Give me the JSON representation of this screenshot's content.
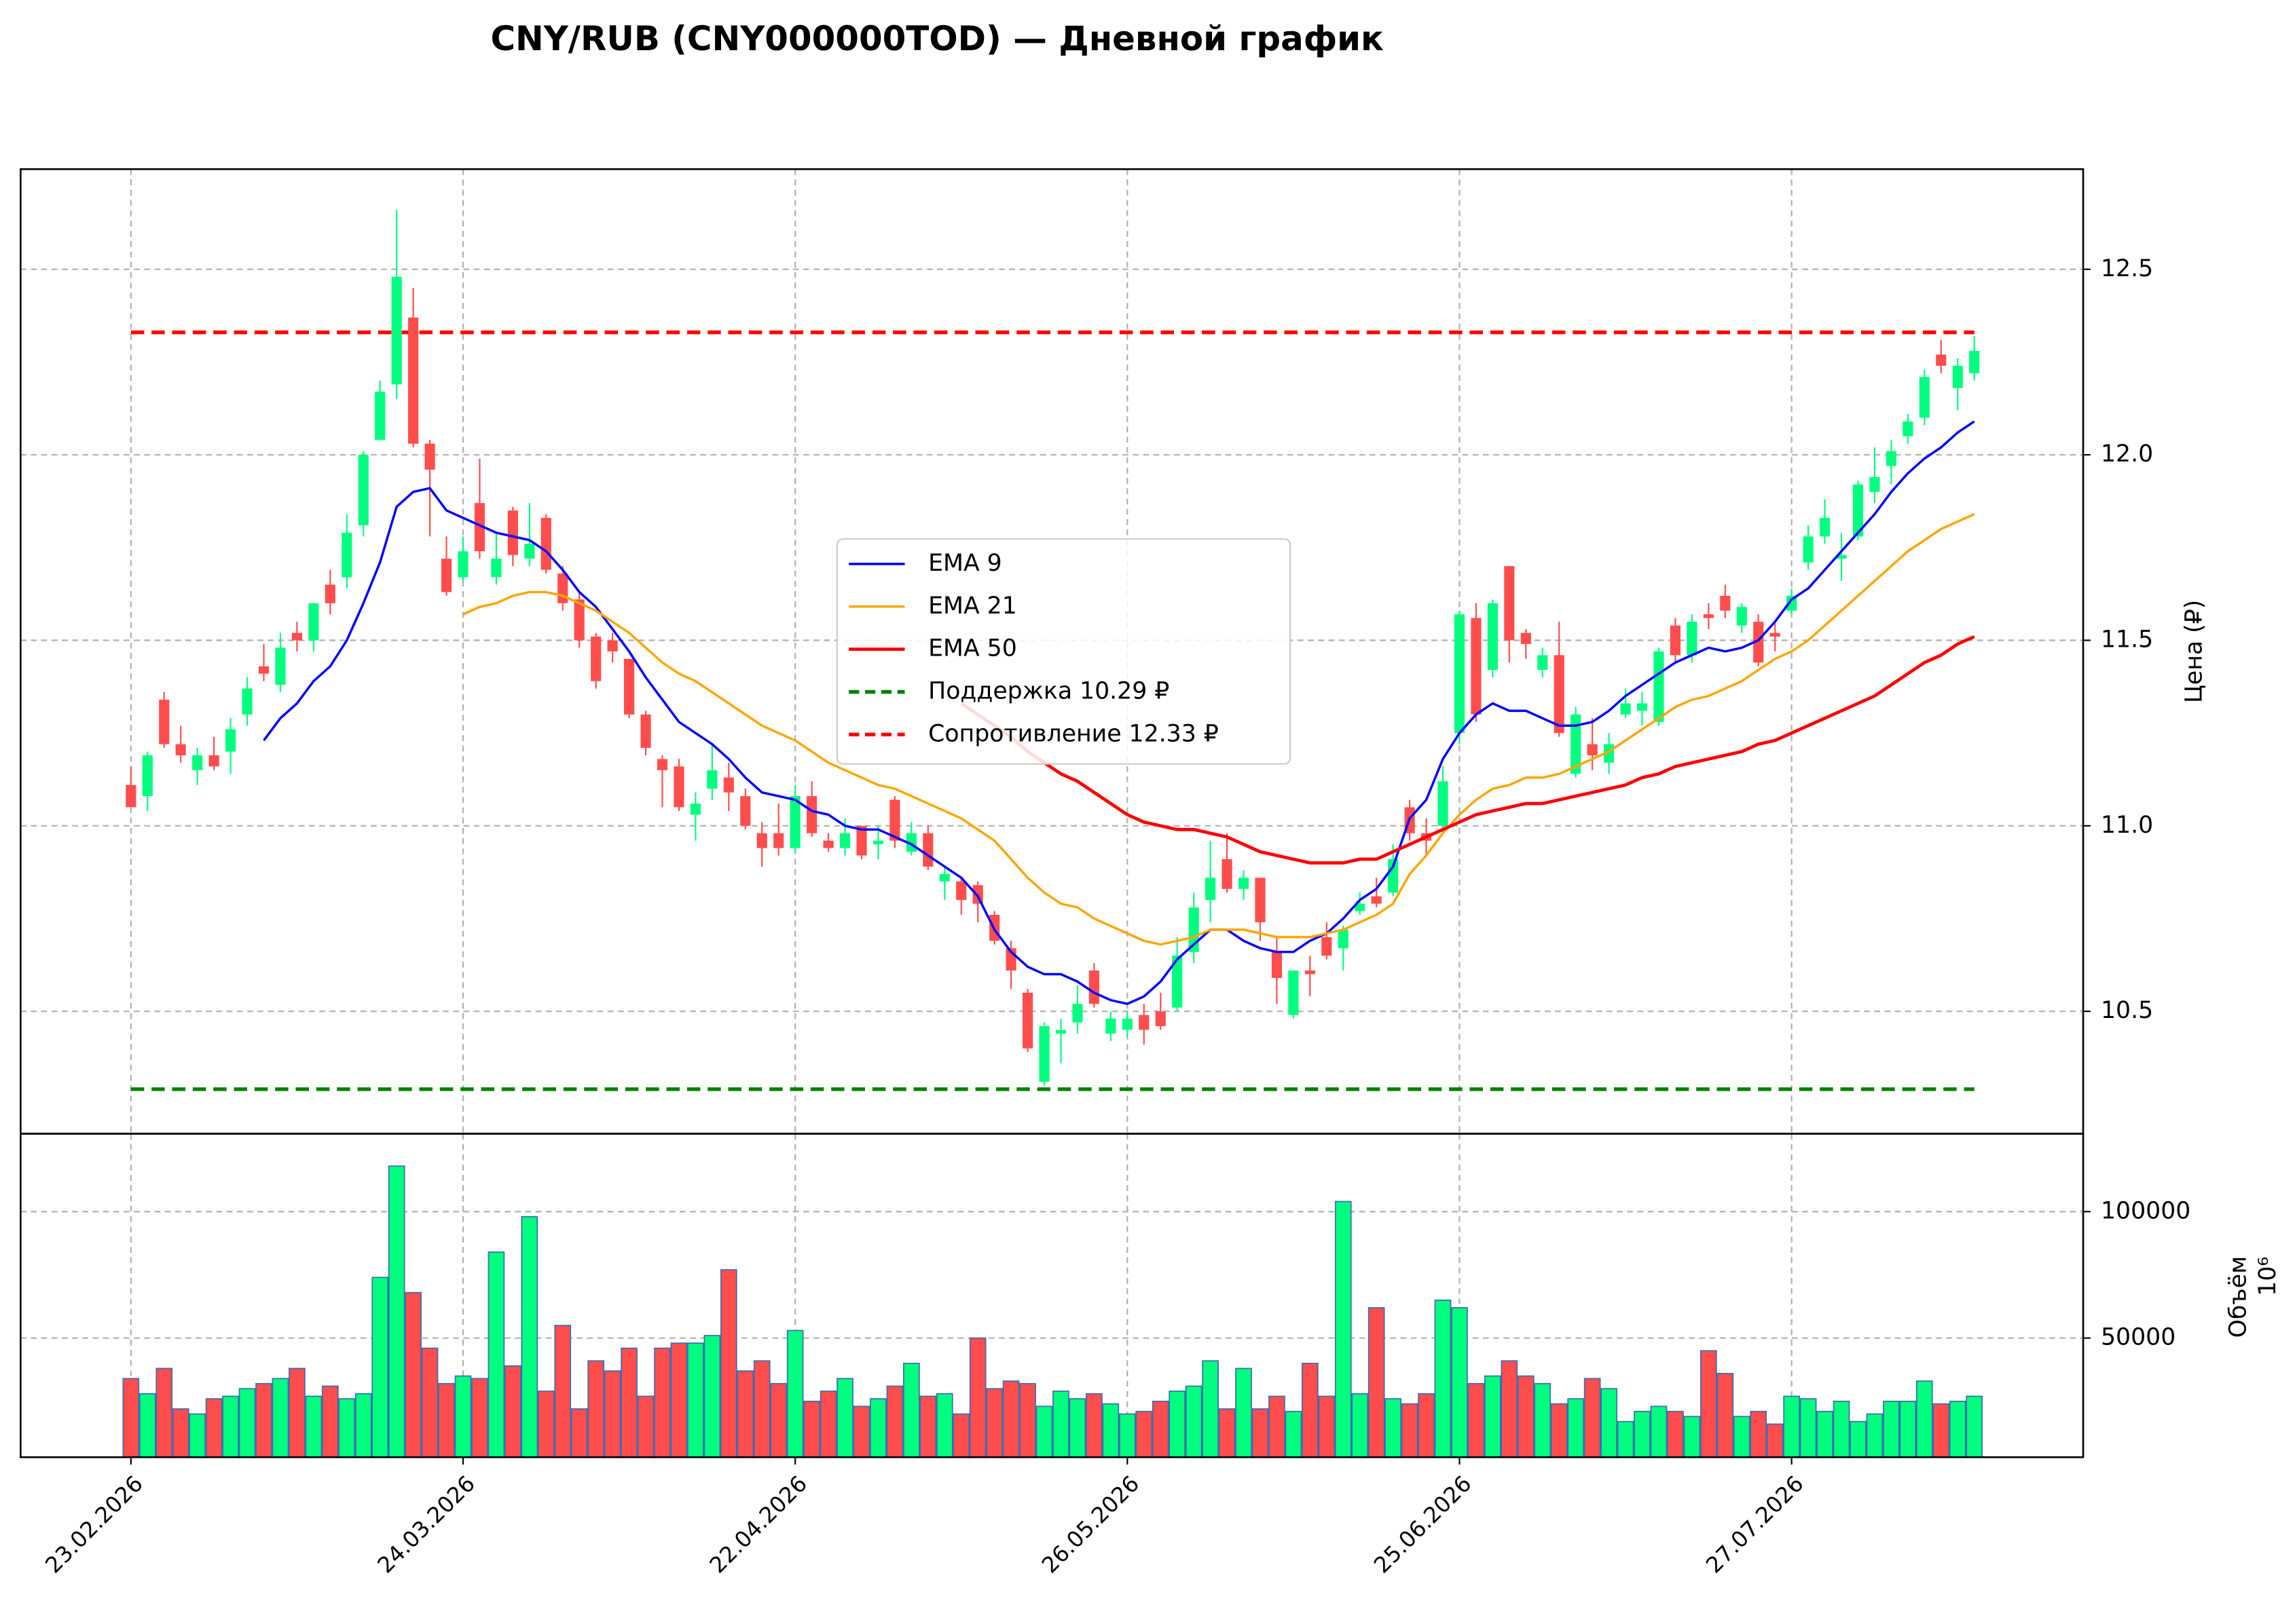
{
  "chart_data": {
    "type": "candlestick",
    "title": "CNY/RUB (CNY000000TOD) — Дневной график",
    "ylabel": "Цена (₽)",
    "categories": [
      "23.02.2026",
      null,
      null,
      null,
      null,
      null,
      null,
      null,
      null,
      null,
      null,
      null,
      null,
      null,
      null,
      null,
      null,
      null,
      null,
      null,
      "24.03.2026",
      null,
      null,
      null,
      null,
      null,
      null,
      null,
      null,
      null,
      null,
      null,
      null,
      null,
      null,
      null,
      null,
      null,
      null,
      null,
      "22.04.2026",
      null,
      null,
      null,
      null,
      null,
      null,
      null,
      null,
      null,
      null,
      null,
      null,
      null,
      null,
      null,
      null,
      null,
      null,
      null,
      "26.05.2026",
      null,
      null,
      null,
      null,
      null,
      null,
      null,
      null,
      null,
      null,
      null,
      null,
      null,
      null,
      null,
      null,
      null,
      null,
      null,
      "25.06.2026",
      null,
      null,
      null,
      null,
      null,
      null,
      null,
      null,
      null,
      null,
      null,
      null,
      null,
      null,
      null,
      null,
      null,
      null,
      null,
      "27.07.2026",
      null,
      null,
      null,
      null,
      null,
      null,
      null,
      null,
      null,
      null,
      null
    ],
    "open": [
      11.11,
      11.08,
      11.34,
      11.22,
      11.15,
      11.19,
      11.2,
      11.3,
      11.43,
      11.38,
      11.52,
      11.5,
      11.65,
      11.67,
      11.81,
      12.04,
      12.19,
      12.37,
      12.03,
      11.72,
      11.67,
      11.87,
      11.67,
      11.85,
      11.72,
      11.83,
      11.68,
      11.61,
      11.51,
      11.5,
      11.45,
      11.3,
      11.18,
      11.16,
      11.03,
      11.1,
      11.13,
      11.08,
      10.98,
      10.98,
      10.94,
      11.08,
      10.96,
      10.94,
      11.0,
      10.95,
      11.07,
      10.93,
      10.98,
      10.85,
      10.85,
      10.84,
      10.76,
      10.67,
      10.55,
      10.31,
      10.44,
      10.47,
      10.61,
      10.44,
      10.45,
      10.49,
      10.5,
      10.51,
      10.66,
      10.8,
      10.91,
      10.83,
      10.86,
      10.66,
      10.49,
      10.61,
      10.7,
      10.67,
      10.77,
      10.81,
      10.82,
      11.05,
      10.98,
      11.0,
      11.25,
      11.56,
      11.42,
      11.7,
      11.52,
      11.42,
      11.46,
      11.14,
      11.22,
      11.17,
      11.3,
      11.31,
      11.28,
      11.54,
      11.46,
      11.57,
      11.62,
      11.54,
      11.55,
      11.52,
      11.58,
      11.71,
      11.78,
      11.72,
      11.78,
      11.9,
      11.97,
      12.05,
      12.1,
      12.27,
      12.18,
      12.22
    ],
    "high": [
      11.16,
      11.2,
      11.36,
      11.27,
      11.21,
      11.24,
      11.29,
      11.4,
      11.49,
      11.52,
      11.55,
      11.6,
      11.69,
      11.84,
      12.01,
      12.2,
      12.66,
      12.45,
      12.04,
      11.78,
      11.78,
      11.99,
      11.79,
      11.86,
      11.87,
      11.84,
      11.7,
      11.63,
      11.52,
      11.52,
      11.45,
      11.31,
      11.19,
      11.18,
      11.09,
      11.22,
      11.17,
      11.1,
      11.01,
      11.06,
      11.11,
      11.12,
      10.98,
      11.02,
      11.0,
      11.0,
      11.08,
      11.01,
      11.0,
      10.89,
      10.86,
      10.85,
      10.77,
      10.69,
      10.56,
      10.47,
      10.48,
      10.57,
      10.63,
      10.5,
      10.5,
      10.52,
      10.55,
      10.7,
      10.82,
      10.96,
      10.98,
      10.88,
      10.86,
      10.7,
      10.61,
      10.65,
      10.74,
      10.73,
      10.82,
      10.86,
      10.95,
      11.07,
      11.02,
      11.16,
      11.58,
      11.6,
      11.61,
      11.7,
      11.53,
      11.48,
      11.55,
      11.32,
      11.29,
      11.25,
      11.37,
      11.36,
      11.48,
      11.56,
      11.57,
      11.6,
      11.65,
      11.6,
      11.57,
      11.55,
      11.64,
      11.81,
      11.88,
      11.79,
      11.93,
      12.02,
      12.04,
      12.11,
      12.23,
      12.31,
      12.26,
      12.32
    ],
    "low": [
      11.05,
      11.04,
      11.21,
      11.17,
      11.11,
      11.15,
      11.14,
      11.27,
      11.39,
      11.36,
      11.47,
      11.47,
      11.57,
      11.64,
      11.78,
      12.04,
      12.15,
      12.02,
      11.78,
      11.62,
      11.66,
      11.72,
      11.65,
      11.7,
      11.7,
      11.68,
      11.58,
      11.48,
      11.37,
      11.44,
      11.29,
      11.19,
      11.05,
      11.04,
      10.96,
      11.07,
      11.04,
      10.99,
      10.89,
      10.92,
      10.93,
      10.97,
      10.93,
      10.92,
      10.91,
      10.91,
      10.94,
      10.92,
      10.88,
      10.8,
      10.76,
      10.74,
      10.68,
      10.56,
      10.39,
      10.3,
      10.36,
      10.44,
      10.51,
      10.42,
      10.43,
      10.41,
      10.45,
      10.5,
      10.63,
      10.74,
      10.82,
      10.8,
      10.69,
      10.52,
      10.48,
      10.54,
      10.64,
      10.61,
      10.76,
      10.78,
      10.81,
      10.96,
      10.92,
      10.99,
      11.22,
      11.28,
      11.4,
      11.44,
      11.45,
      11.4,
      11.24,
      11.13,
      11.15,
      11.14,
      11.29,
      11.27,
      11.27,
      11.44,
      11.44,
      11.53,
      11.56,
      11.52,
      11.43,
      11.47,
      11.57,
      11.69,
      11.76,
      11.66,
      11.77,
      11.87,
      11.92,
      12.03,
      12.08,
      12.22,
      12.12,
      12.2
    ],
    "close": [
      11.05,
      11.19,
      11.22,
      11.19,
      11.19,
      11.16,
      11.26,
      11.37,
      11.41,
      11.48,
      11.5,
      11.6,
      11.6,
      11.79,
      12.0,
      12.17,
      12.48,
      12.03,
      11.96,
      11.63,
      11.74,
      11.74,
      11.72,
      11.73,
      11.76,
      11.69,
      11.6,
      11.5,
      11.39,
      11.47,
      11.3,
      11.21,
      11.15,
      11.05,
      11.06,
      11.15,
      11.09,
      11.0,
      10.94,
      10.94,
      11.08,
      10.98,
      10.94,
      10.98,
      10.92,
      10.96,
      10.96,
      10.98,
      10.89,
      10.87,
      10.8,
      10.79,
      10.69,
      10.61,
      10.4,
      10.46,
      10.45,
      10.52,
      10.52,
      10.48,
      10.48,
      10.45,
      10.46,
      10.65,
      10.78,
      10.86,
      10.83,
      10.86,
      10.74,
      10.59,
      10.61,
      10.6,
      10.65,
      10.72,
      10.79,
      10.79,
      10.91,
      10.98,
      10.96,
      11.12,
      11.57,
      11.3,
      11.6,
      11.5,
      11.49,
      11.46,
      11.25,
      11.3,
      11.19,
      11.22,
      11.33,
      11.33,
      11.47,
      11.46,
      11.55,
      11.56,
      11.58,
      11.59,
      11.44,
      11.51,
      11.62,
      11.78,
      11.83,
      11.73,
      11.92,
      11.94,
      12.01,
      12.09,
      12.21,
      12.24,
      12.24,
      12.28
    ],
    "up_color": "#00ff7f",
    "down_color": "#ff4d4d",
    "series": [
      {
        "name": "EMA 9",
        "color": "#0000ff",
        "values": [
          null,
          null,
          null,
          null,
          null,
          null,
          null,
          null,
          11.23,
          11.29,
          11.33,
          11.39,
          11.43,
          11.5,
          11.6,
          11.71,
          11.86,
          11.9,
          11.91,
          11.85,
          11.83,
          11.81,
          11.79,
          11.78,
          11.77,
          11.74,
          11.69,
          11.63,
          11.59,
          11.53,
          11.47,
          11.4,
          11.34,
          11.28,
          11.25,
          11.22,
          11.18,
          11.13,
          11.09,
          11.08,
          11.07,
          11.04,
          11.03,
          11.0,
          10.99,
          10.99,
          10.97,
          10.95,
          10.92,
          10.89,
          10.86,
          10.81,
          10.72,
          10.66,
          10.62,
          10.6,
          10.6,
          10.58,
          10.55,
          10.53,
          10.52,
          10.54,
          10.58,
          10.64,
          10.68,
          10.72,
          10.72,
          10.69,
          10.67,
          10.66,
          10.66,
          10.69,
          10.71,
          10.75,
          10.8,
          10.83,
          10.89,
          11.02,
          11.07,
          11.18,
          11.25,
          11.3,
          11.33,
          11.31,
          11.31,
          11.29,
          11.27,
          11.27,
          11.28,
          11.31,
          11.35,
          11.38,
          11.41,
          11.44,
          11.46,
          11.48,
          11.47,
          11.48,
          11.5,
          11.55,
          11.61,
          11.64,
          11.69,
          11.74,
          11.79,
          11.84,
          11.9,
          11.95,
          11.99,
          12.02,
          12.06,
          12.09
        ]
      },
      {
        "name": "EMA 21",
        "color": "#ffa500",
        "values": [
          null,
          null,
          null,
          null,
          null,
          null,
          null,
          null,
          null,
          null,
          null,
          null,
          null,
          null,
          null,
          null,
          null,
          null,
          null,
          null,
          11.57,
          11.59,
          11.6,
          11.62,
          11.63,
          11.63,
          11.62,
          11.6,
          11.58,
          11.55,
          11.52,
          11.48,
          11.44,
          11.41,
          11.39,
          11.36,
          11.33,
          11.3,
          11.27,
          11.25,
          11.23,
          11.2,
          11.17,
          11.15,
          11.13,
          11.11,
          11.1,
          11.08,
          11.06,
          11.04,
          11.02,
          10.99,
          10.96,
          10.91,
          10.86,
          10.82,
          10.79,
          10.78,
          10.75,
          10.73,
          10.71,
          10.69,
          10.68,
          10.69,
          10.7,
          10.72,
          10.72,
          10.72,
          10.71,
          10.7,
          10.7,
          10.7,
          10.71,
          10.72,
          10.74,
          10.76,
          10.79,
          10.87,
          10.92,
          10.98,
          11.03,
          11.07,
          11.1,
          11.11,
          11.13,
          11.13,
          11.14,
          11.16,
          11.18,
          11.2,
          11.23,
          11.26,
          11.29,
          11.32,
          11.34,
          11.35,
          11.37,
          11.39,
          11.42,
          11.45,
          11.47,
          11.5,
          11.54,
          11.58,
          11.62,
          11.66,
          11.7,
          11.74,
          11.77,
          11.8,
          11.82,
          11.84
        ]
      },
      {
        "name": "EMA 50",
        "color": "#ff0000",
        "values": [
          null,
          null,
          null,
          null,
          null,
          null,
          null,
          null,
          null,
          null,
          null,
          null,
          null,
          null,
          null,
          null,
          null,
          null,
          null,
          null,
          null,
          null,
          null,
          null,
          null,
          null,
          null,
          null,
          null,
          null,
          null,
          null,
          null,
          null,
          null,
          null,
          null,
          null,
          null,
          null,
          null,
          null,
          null,
          null,
          null,
          null,
          null,
          null,
          null,
          null,
          11.33,
          11.3,
          11.27,
          11.24,
          11.2,
          11.17,
          11.14,
          11.12,
          11.09,
          11.06,
          11.03,
          11.01,
          11.0,
          10.99,
          10.99,
          10.98,
          10.97,
          10.95,
          10.93,
          10.92,
          10.91,
          10.9,
          10.9,
          10.9,
          10.91,
          10.91,
          10.93,
          10.95,
          10.97,
          10.99,
          11.01,
          11.03,
          11.04,
          11.05,
          11.06,
          11.06,
          11.07,
          11.08,
          11.09,
          11.1,
          11.11,
          11.13,
          11.14,
          11.16,
          11.17,
          11.18,
          11.19,
          11.2,
          11.22,
          11.23,
          11.25,
          11.27,
          11.29,
          11.31,
          11.33,
          11.35,
          11.38,
          11.41,
          11.44,
          11.46,
          11.49,
          11.51
        ]
      }
    ],
    "hlines": [
      {
        "name": "Поддержка 10.29 ₽",
        "color": "#008000",
        "value": 10.29
      },
      {
        "name": "Сопротивление 12.33 ₽",
        "color": "#ff0000",
        "value": 12.33
      }
    ],
    "ylim": [
      10.17,
      12.77
    ],
    "yticks": [
      10.5,
      {
        "value": 11,
        "label": "11.0"
      },
      11.5,
      {
        "value": 12,
        "label": "12.0"
      },
      12.5
    ],
    "grid": true,
    "legend": "center",
    "volume": {
      "ylabel": "Объём",
      "offset_label": "10⁶",
      "values": [
        34000,
        28000,
        38000,
        22000,
        20000,
        26000,
        27000,
        30000,
        32000,
        34000,
        38000,
        27000,
        31000,
        26000,
        28000,
        74000,
        118000,
        68000,
        46000,
        32000,
        35000,
        34000,
        84000,
        39000,
        98000,
        29000,
        55000,
        22000,
        41000,
        37000,
        46000,
        27000,
        46000,
        48000,
        48000,
        51000,
        77000,
        37000,
        41000,
        32000,
        53000,
        25000,
        29000,
        34000,
        23000,
        26000,
        31000,
        40000,
        27000,
        28000,
        20000,
        50000,
        30000,
        33000,
        32000,
        23000,
        29000,
        26000,
        28000,
        24000,
        20000,
        21000,
        25000,
        29000,
        31000,
        41000,
        22000,
        38000,
        22000,
        27000,
        21000,
        40000,
        27000,
        104000,
        28000,
        62000,
        26000,
        24000,
        28000,
        65000,
        62000,
        32000,
        35000,
        41000,
        35000,
        32000,
        24000,
        26000,
        34000,
        30000,
        17000,
        21000,
        23000,
        21000,
        19000,
        45000,
        36000,
        19000,
        21000,
        16000,
        27000,
        26000,
        21000,
        25000,
        17000,
        20000,
        25000,
        25000,
        33000,
        24000,
        25000,
        27000
      ],
      "ylim": [
        2900,
        130800
      ],
      "yticks": [
        50000,
        100000
      ]
    }
  }
}
